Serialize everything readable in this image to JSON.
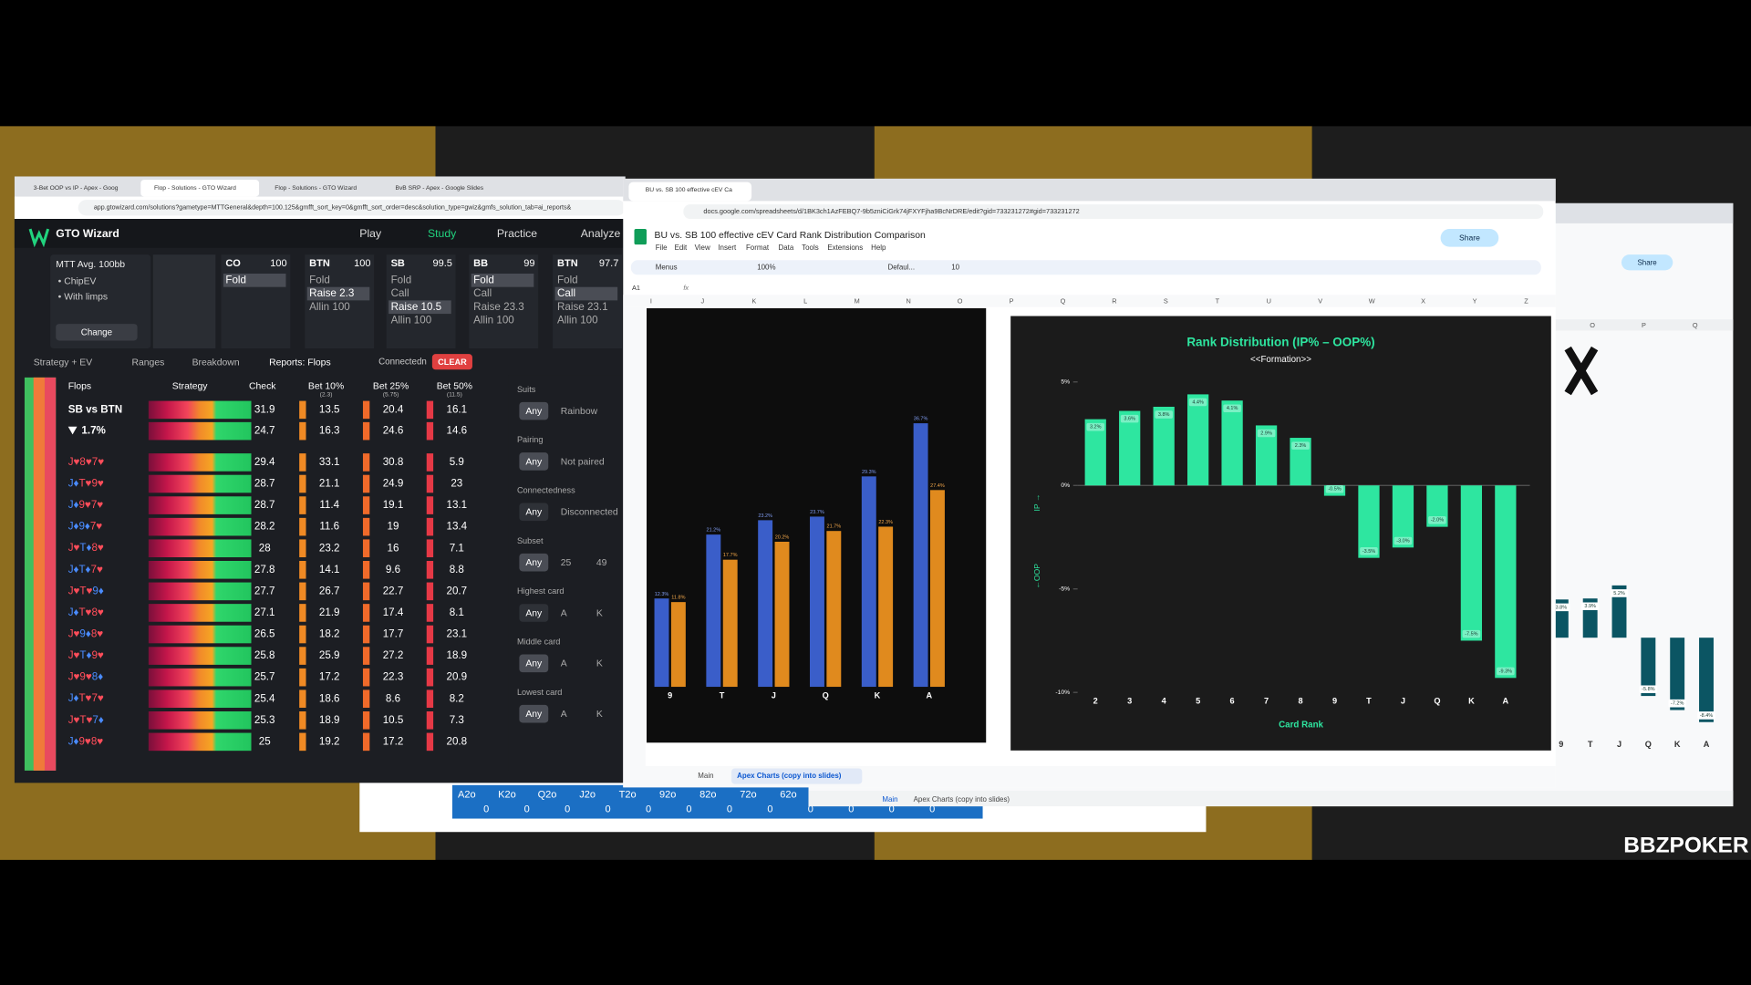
{
  "browser_left": {
    "tabs": [
      "3-Bet OOP vs IP - Apex - Goog",
      "Flop - Solutions - GTO Wizard",
      "Flop - Solutions - GTO Wizard",
      "BvB SRP - Apex - Google Slides"
    ],
    "active_tab": 1,
    "url": "app.gtowizard.com/solutions?gametype=MTTGeneral&depth=100.125&gmfft_sort_key=0&gmfft_sort_order=desc&solution_type=gwiz&gmfs_solution_tab=ai_reports&"
  },
  "gto": {
    "brand": "GTO Wizard",
    "nav": [
      "Play",
      "Study",
      "Practice",
      "Analyze"
    ],
    "active_nav": 1,
    "format": "MTT  Avg. 100bb",
    "options": [
      "• ChipEV",
      "• With limps"
    ],
    "change": "Change",
    "positions": [
      {
        "name": "CO",
        "stack": 100,
        "actions": [
          "Fold"
        ],
        "selected": 0
      },
      {
        "name": "BTN",
        "stack": 100,
        "actions": [
          "Fold",
          "Raise 2.3",
          "Allin 100"
        ],
        "selected": 1
      },
      {
        "name": "SB",
        "stack": 99.5,
        "actions": [
          "Fold",
          "Call",
          "Raise 10.5",
          "Allin 100"
        ],
        "selected": 2
      },
      {
        "name": "BB",
        "stack": 99,
        "actions": [
          "Fold",
          "Call",
          "Raise 23.3",
          "Allin 100"
        ],
        "selected": 0
      },
      {
        "name": "BTN",
        "stack": 97.7,
        "actions": [
          "Fold",
          "Call",
          "Raise 23.1",
          "Allin 100"
        ],
        "selected": 1
      }
    ],
    "subnav": [
      "Strategy + EV",
      "Ranges",
      "Breakdown",
      "Reports: Flops"
    ],
    "filter_label": "Connectedn",
    "clear": "CLEAR",
    "table": {
      "headers": [
        {
          "name": "Flops"
        },
        {
          "name": "Strategy"
        },
        {
          "name": "Check"
        },
        {
          "name": "Bet 10%",
          "size": "(2.3)"
        },
        {
          "name": "Bet 25%",
          "size": "(5.75)"
        },
        {
          "name": "Bet 50%",
          "size": "(11.5)"
        }
      ],
      "rows": [
        {
          "flop": "SB vs BTN",
          "values": [
            31.9,
            13.5,
            20.4,
            16.1
          ]
        },
        {
          "flop": "1.7%",
          "values": [
            24.7,
            16.3,
            24.6,
            14.6
          ]
        },
        {
          "flop": "J♥8♥7♥",
          "values": [
            29.4,
            33.1,
            30.8,
            5.9
          ]
        },
        {
          "flop": "J♦T♥9♥",
          "values": [
            28.7,
            21.1,
            24.9,
            23
          ]
        },
        {
          "flop": "J♦9♥7♥",
          "values": [
            28.7,
            11.4,
            19.1,
            13.1
          ]
        },
        {
          "flop": "J♦9♦7♥",
          "values": [
            28.2,
            11.6,
            19,
            13.4
          ]
        },
        {
          "flop": "J♥T♦8♥",
          "values": [
            28,
            23.2,
            16,
            7.1
          ]
        },
        {
          "flop": "J♦T♦7♥",
          "values": [
            27.8,
            14.1,
            9.6,
            8.8
          ]
        },
        {
          "flop": "J♥T♥9♦",
          "values": [
            27.7,
            26.7,
            22.7,
            20.7
          ]
        },
        {
          "flop": "J♦T♥8♥",
          "values": [
            27.1,
            21.9,
            17.4,
            8.1
          ]
        },
        {
          "flop": "J♥9♦8♥",
          "values": [
            26.5,
            18.2,
            17.7,
            23.1
          ]
        },
        {
          "flop": "J♥T♦9♥",
          "values": [
            25.8,
            25.9,
            27.2,
            18.9
          ]
        },
        {
          "flop": "J♥9♥8♦",
          "values": [
            25.7,
            17.2,
            22.3,
            20.9
          ]
        },
        {
          "flop": "J♦T♥7♥",
          "values": [
            25.4,
            18.6,
            8.6,
            8.2
          ]
        },
        {
          "flop": "J♥T♥7♦",
          "values": [
            25.3,
            18.9,
            10.5,
            7.3
          ]
        },
        {
          "flop": "J♦9♥8♥",
          "values": [
            25,
            19.2,
            17.2,
            20.8
          ]
        }
      ]
    },
    "filters": [
      {
        "label": "Suits",
        "options": [
          "Any",
          "Rainbow"
        ]
      },
      {
        "label": "Pairing",
        "options": [
          "Any",
          "Not paired"
        ]
      },
      {
        "label": "Connectedness",
        "options": [
          "Any",
          "Disconnected"
        ]
      },
      {
        "label": "Subset",
        "options": [
          "Any",
          "25",
          "49"
        ]
      },
      {
        "label": "Highest card",
        "options": [
          "Any",
          "A",
          "K"
        ]
      },
      {
        "label": "Middle card",
        "options": [
          "Any",
          "A",
          "K"
        ]
      },
      {
        "label": "Lowest card",
        "options": [
          "Any",
          "A",
          "K"
        ]
      }
    ]
  },
  "sheet": {
    "tab": "BU vs. SB 100 effective cEV Ca",
    "url": "docs.google.com/spreadsheets/d/1BK3ch1AzFEBQ7-9b5zniCiGrk74jFXYFjha9BcNrDRE/edit?gid=733231272#gid=733231272",
    "title": "BU vs. SB 100 effective cEV Card Rank Distribution Comparison",
    "menu": [
      "File",
      "Edit",
      "View",
      "Insert",
      "Format",
      "Data",
      "Tools",
      "Extensions",
      "Help"
    ],
    "toolbar": [
      "Menus",
      "100%",
      "Defaul...",
      "10"
    ],
    "share": "Share",
    "cell": "A1",
    "fx": "fx",
    "columns": [
      "I",
      "J",
      "K",
      "L",
      "M",
      "N",
      "O",
      "P",
      "Q",
      "R",
      "S",
      "T",
      "U",
      "V",
      "W",
      "X",
      "Y",
      "Z"
    ],
    "sheets": [
      "Main",
      "Apex Charts (copy into slides)"
    ]
  },
  "right_window": {
    "share": "Share",
    "columns": [
      "O",
      "P",
      "Q"
    ],
    "sheets": [
      "Main",
      "Apex Charts (copy into slides)"
    ]
  },
  "bottom_sheet": {
    "hands": [
      "A2o",
      "K2o",
      "Q2o",
      "J2o",
      "T2o",
      "92o",
      "82o",
      "72o",
      "62o"
    ],
    "values": [
      0,
      0,
      0,
      0,
      0,
      0,
      0,
      0,
      0,
      0,
      0,
      0
    ]
  },
  "logo": "BBZPOKER",
  "chart_data": [
    {
      "type": "bar",
      "categories": [
        "9",
        "T",
        "J",
        "Q",
        "K",
        "A"
      ],
      "series": [
        {
          "color": "#3a5ec9",
          "values": [
            12.3,
            21.2,
            23.2,
            23.7,
            29.3,
            36.7
          ],
          "value_labels": [
            "12.3%",
            "21.2%",
            "23.2%",
            "23.7%",
            "29.3%",
            "36.7%"
          ]
        },
        {
          "color": "#e08a1e",
          "values": [
            11.8,
            17.7,
            20.2,
            21.7,
            22.3,
            27.4
          ],
          "value_labels": [
            "11.8%",
            "17.7%",
            "20.2%",
            "21.7%",
            "22.3%",
            "27.4%"
          ]
        }
      ]
    },
    {
      "type": "bar",
      "title": "Rank Distribution (IP% – OOP%)",
      "subtitle": "<<Formation>>",
      "x_label": "Card Rank",
      "y_label_ip": "IP →",
      "y_label_oop": "←OOP",
      "categories": [
        "2",
        "3",
        "4",
        "5",
        "6",
        "7",
        "8",
        "9",
        "T",
        "J",
        "Q",
        "K",
        "A"
      ],
      "values": [
        3.2,
        3.6,
        3.8,
        4.4,
        4.1,
        2.9,
        2.3,
        -0.5,
        -3.5,
        -3.0,
        -2.0,
        -7.5,
        -9.3
      ],
      "value_labels": [
        "3.2%",
        "3.6%",
        "3.8%",
        "4.4%",
        "4.1%",
        "2.9%",
        "2.3%",
        "-0.5%",
        "-3.5%",
        "-3.0%",
        "-2.0%",
        "-7.5%",
        "-9.3%"
      ],
      "color": "#2ee6a0",
      "ylim": [
        -10,
        5
      ],
      "yticks": [
        {
          "value": 5,
          "label": "5%"
        },
        {
          "value": 0,
          "label": "0%"
        },
        {
          "value": -5,
          "label": "-5%"
        },
        {
          "value": -10,
          "label": "-10%"
        }
      ]
    },
    {
      "type": "bar",
      "categories": [
        "9",
        "T",
        "J",
        "Q",
        "K",
        "A"
      ],
      "values": [
        3.8,
        3.9,
        5.2,
        -5.8,
        -7.2,
        -8.4
      ],
      "value_labels": [
        "3.8%",
        "3.9%",
        "5.2%",
        "-5.8%",
        "-7.2%",
        "-8.4%"
      ],
      "color": "#0b5563"
    }
  ]
}
